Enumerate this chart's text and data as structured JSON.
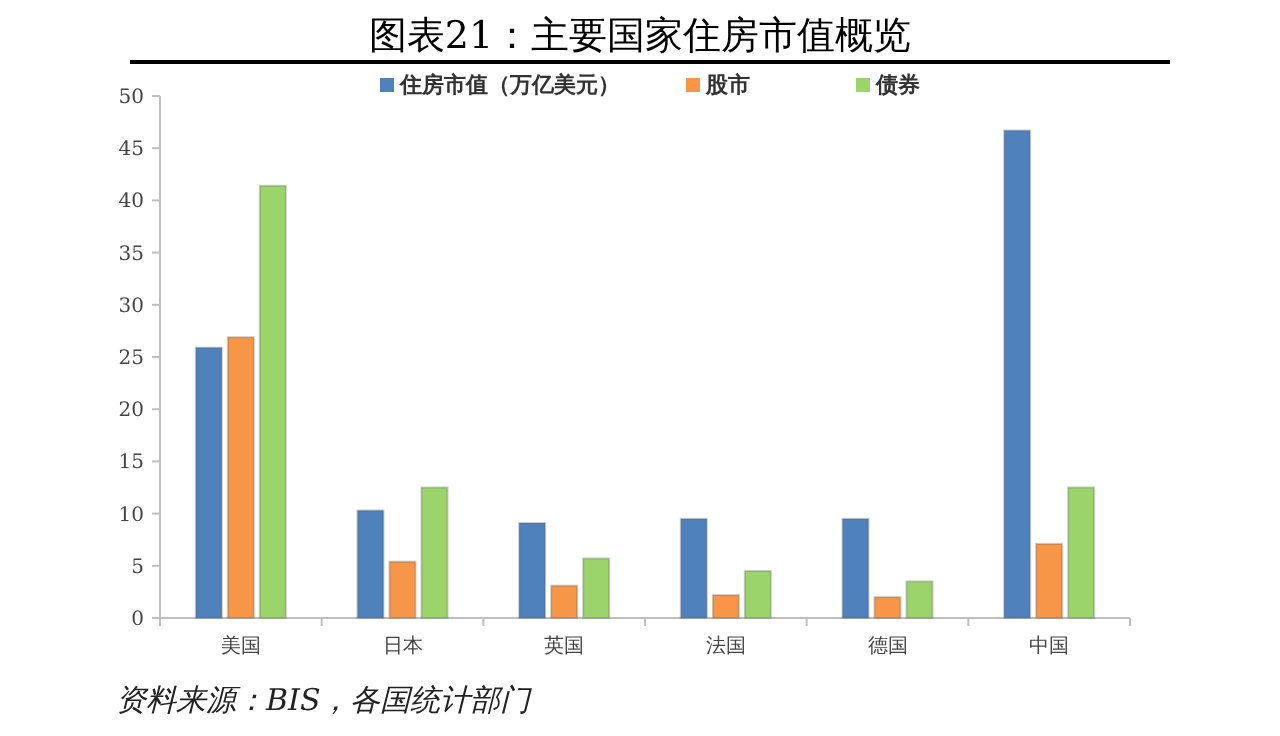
{
  "chart_data": {
    "type": "bar",
    "title": "图表21：主要国家住房市值概览",
    "categories": [
      "美国",
      "日本",
      "英国",
      "法国",
      "德国",
      "中国"
    ],
    "series": [
      {
        "name": "住房市值（万亿美元）",
        "color": "#4f81bd",
        "values": [
          25.9,
          10.3,
          9.1,
          9.5,
          9.5,
          46.7
        ]
      },
      {
        "name": "股市",
        "color": "#f79646",
        "values": [
          26.9,
          5.4,
          3.1,
          2.2,
          2.0,
          7.1
        ]
      },
      {
        "name": "债券",
        "color": "#9bd46a",
        "values": [
          41.4,
          12.5,
          5.7,
          4.5,
          3.5,
          12.5
        ]
      }
    ],
    "ylim": [
      0,
      50
    ],
    "yticks": [
      0,
      5,
      10,
      15,
      20,
      25,
      30,
      35,
      40,
      45,
      50
    ],
    "grid": false,
    "legend": "top",
    "annotations": [
      "资料来源：BIS，各国统计部门"
    ]
  }
}
